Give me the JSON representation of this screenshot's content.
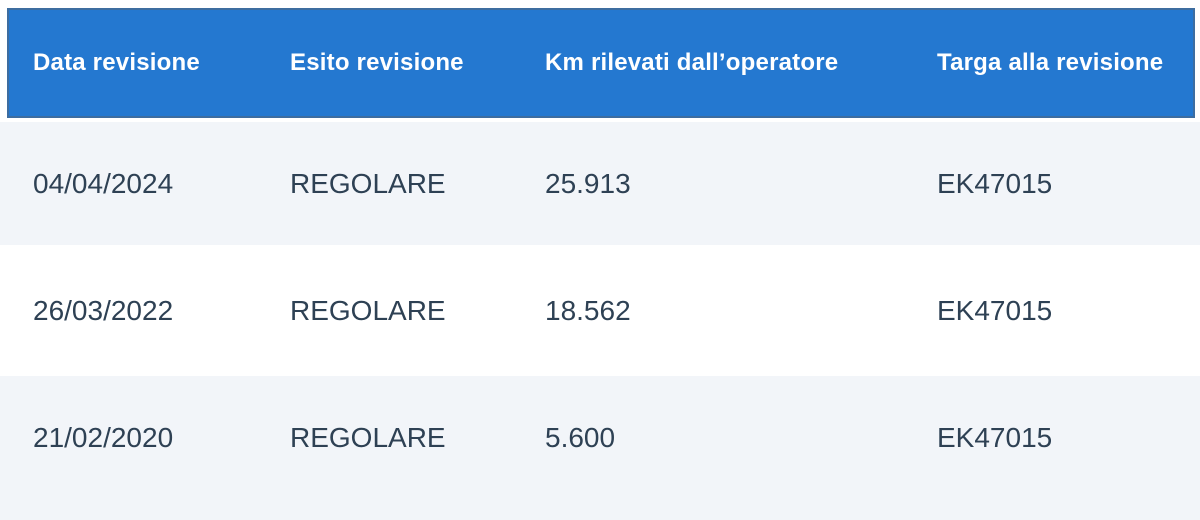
{
  "table": {
    "columns": [
      {
        "label": "Data revisione"
      },
      {
        "label": "Esito revisione"
      },
      {
        "label": "Km rilevati dall’operatore"
      },
      {
        "label": "Targa alla revisione"
      }
    ],
    "rows": [
      {
        "data_revisione": "04/04/2024",
        "esito_revisione": "REGOLARE",
        "km_rilevati": "25.913",
        "targa": "EK47015"
      },
      {
        "data_revisione": "26/03/2022",
        "esito_revisione": "REGOLARE",
        "km_rilevati": "18.562",
        "targa": "EK47015"
      },
      {
        "data_revisione": "21/02/2020",
        "esito_revisione": "REGOLARE",
        "km_rilevati": "5.600",
        "targa": "EK47015"
      }
    ]
  },
  "colors": {
    "header_bg": "#2478d0",
    "header_border": "#3d6da0",
    "header_text": "#ffffff",
    "row_alt_bg": "#f2f5f9",
    "row_bg": "#ffffff",
    "body_text": "#2e4154"
  }
}
